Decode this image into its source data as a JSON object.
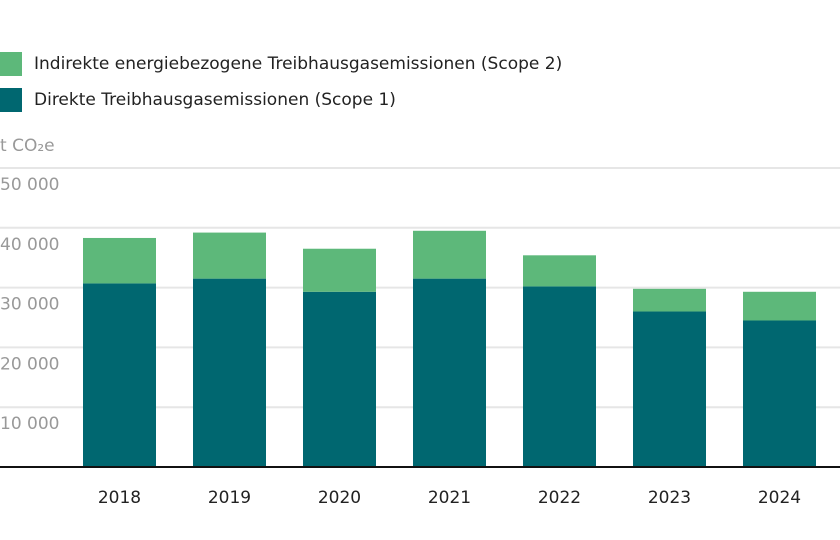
{
  "chart_data": {
    "type": "bar",
    "stacked": true,
    "unit_label": "t CO₂e",
    "categories": [
      "2018",
      "2019",
      "2020",
      "2021",
      "2022",
      "2023",
      "2024"
    ],
    "series": [
      {
        "name": "Direkte Treibhausgasemissionen (Scope 1)",
        "color": "#006770",
        "values": [
          30700,
          31500,
          29300,
          31500,
          30200,
          26000,
          24500
        ]
      },
      {
        "name": "Indirekte energiebezogene Treibhausgasemissionen (Scope 2)",
        "color": "#5db87a",
        "values": [
          7600,
          7700,
          7200,
          8000,
          5200,
          3800,
          4800
        ]
      }
    ],
    "ylim": [
      0,
      50000
    ],
    "yticks": [
      10000,
      20000,
      30000,
      40000,
      50000
    ],
    "ytick_labels": [
      "10 000",
      "20 000",
      "30 000",
      "40 000",
      "50 000"
    ],
    "grid": true,
    "legend_placement": "top-left"
  }
}
